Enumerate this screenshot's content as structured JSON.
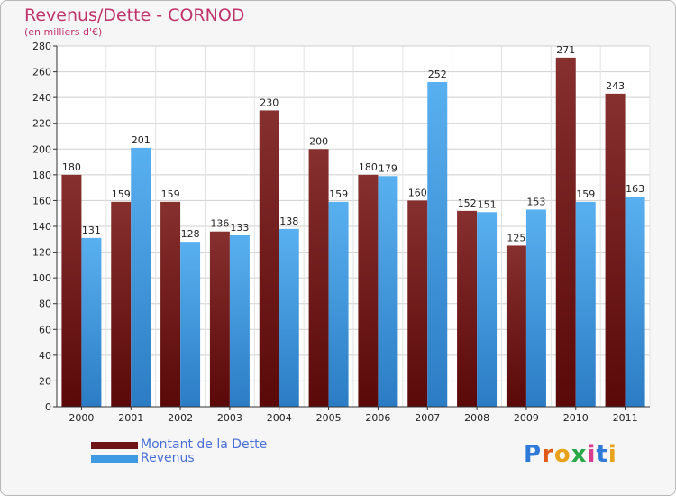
{
  "header": {
    "title": "Revenus/Dette - CORNOD",
    "subtitle": "(en milliers d'€)"
  },
  "logo": {
    "letters": [
      "P",
      "r",
      "o",
      "x",
      "i",
      "t",
      "i"
    ],
    "colors": [
      "#2f7ad9",
      "#e05a1a",
      "#e8a21a",
      "#2aa84a",
      "#d93b8f",
      "#2f7ad9",
      "#e8a21a"
    ]
  },
  "chart_data": {
    "type": "bar",
    "title": "Revenus/Dette - CORNOD",
    "subtitle": "(en milliers d'€)",
    "categories": [
      "2000",
      "2001",
      "2002",
      "2003",
      "2004",
      "2005",
      "2006",
      "2007",
      "2008",
      "2009",
      "2010",
      "2011"
    ],
    "series": [
      {
        "name": "Montant de la Dette",
        "color": "#7a1e22",
        "values": [
          180,
          159,
          159,
          136,
          230,
          200,
          180,
          160,
          152,
          125,
          271,
          243
        ]
      },
      {
        "name": "Revenus",
        "color": "#4aa3e8",
        "values": [
          131,
          201,
          128,
          133,
          138,
          159,
          179,
          252,
          151,
          153,
          159,
          163
        ]
      }
    ],
    "ylim": [
      0,
      280
    ],
    "yticks": [
      0,
      20,
      40,
      60,
      80,
      100,
      120,
      140,
      160,
      180,
      200,
      220,
      240,
      260,
      280
    ],
    "grid": true,
    "legend_position": "bottom-left"
  }
}
